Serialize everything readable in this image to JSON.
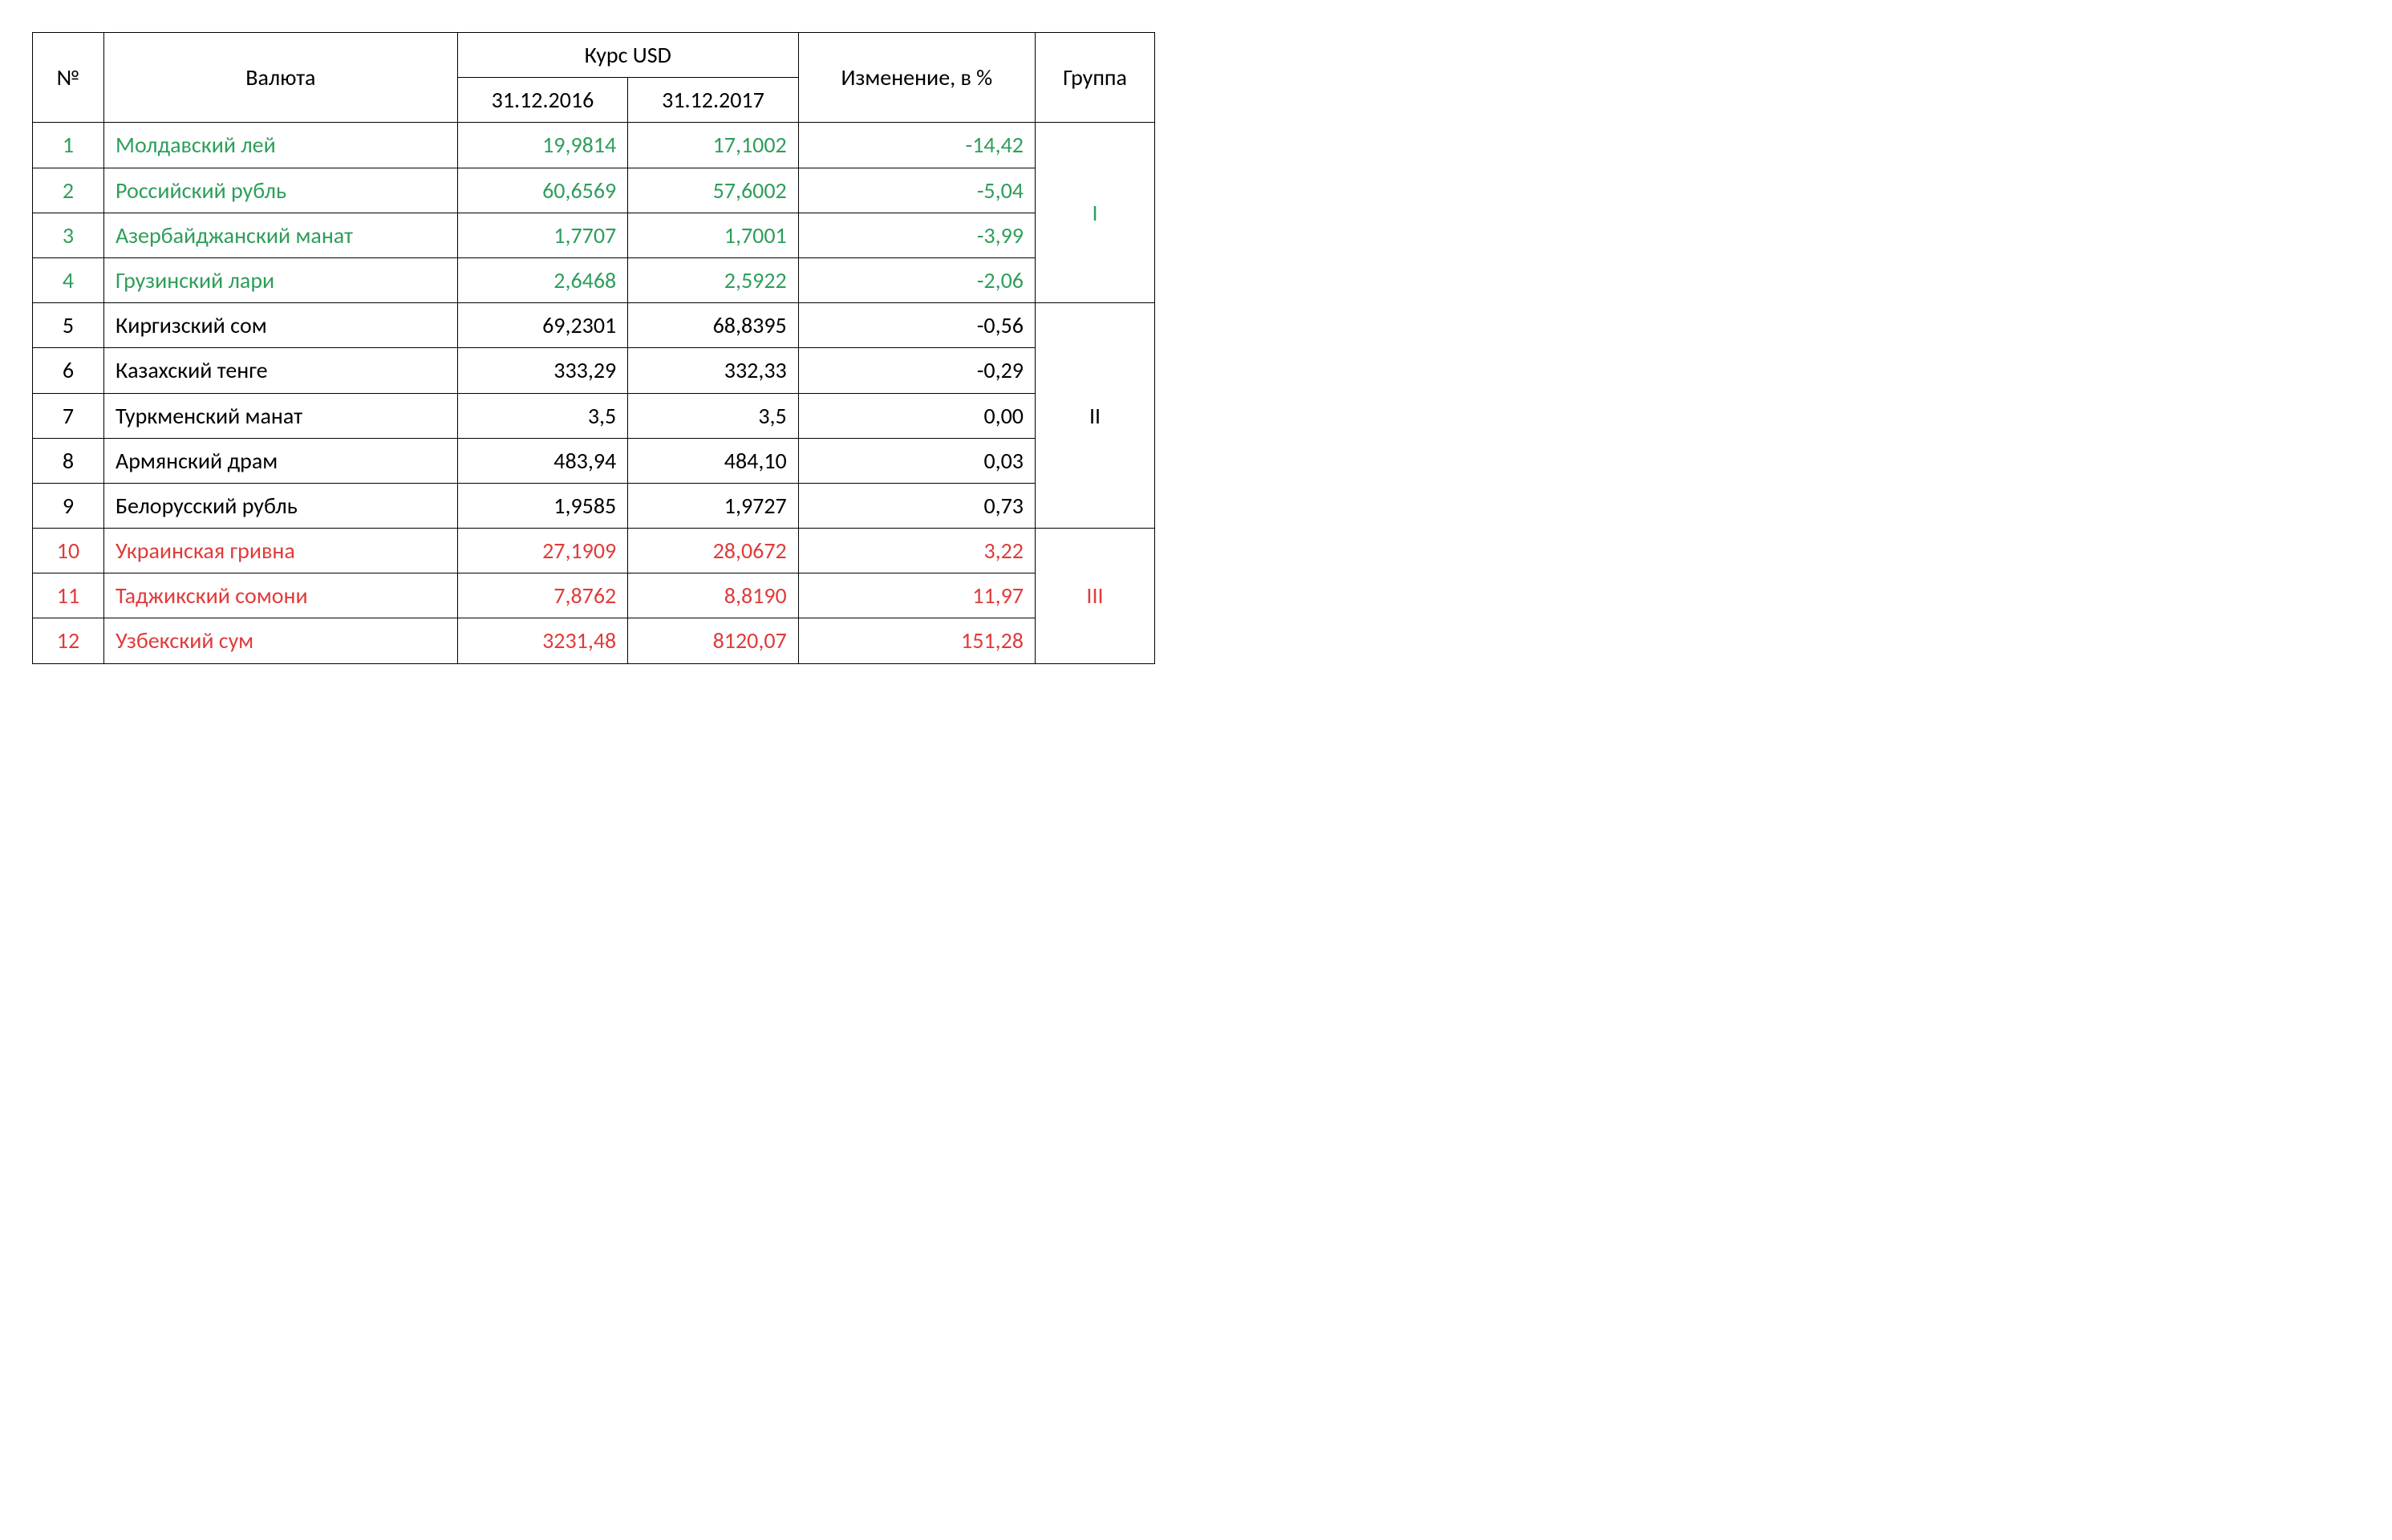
{
  "table": {
    "type": "table",
    "colors": {
      "green": "#2e9e5b",
      "black": "#000000",
      "red": "#e03b3b",
      "border": "#000000",
      "background": "#ffffff"
    },
    "font_size_pt": 20,
    "headers": {
      "num": "№",
      "currency": "Валюта",
      "rate_header": "Курс USD",
      "rate_2016": "31.12.2016",
      "rate_2017": "31.12.2017",
      "change": "Изменение, в %",
      "group": "Группа"
    },
    "groups": [
      {
        "label": "I",
        "color": "green",
        "rows": [
          {
            "num": "1",
            "name": "Молдавский лей",
            "r2016": "19,9814",
            "r2017": "17,1002",
            "change": "-14,42"
          },
          {
            "num": "2",
            "name": "Российский рубль",
            "r2016": "60,6569",
            "r2017": "57,6002",
            "change": "-5,04"
          },
          {
            "num": "3",
            "name": "Азербайджанский манат",
            "r2016": "1,7707",
            "r2017": "1,7001",
            "change": "-3,99"
          },
          {
            "num": "4",
            "name": "Грузинский лари",
            "r2016": "2,6468",
            "r2017": "2,5922",
            "change": "-2,06"
          }
        ]
      },
      {
        "label": "II",
        "color": "black",
        "rows": [
          {
            "num": "5",
            "name": "Киргизский сом",
            "r2016": "69,2301",
            "r2017": "68,8395",
            "change": "-0,56"
          },
          {
            "num": "6",
            "name": "Казахский тенге",
            "r2016": "333,29",
            "r2017": "332,33",
            "change": "-0,29"
          },
          {
            "num": "7",
            "name": "Туркменский манат",
            "r2016": "3,5",
            "r2017": "3,5",
            "change": "0,00"
          },
          {
            "num": "8",
            "name": "Армянский драм",
            "r2016": "483,94",
            "r2017": "484,10",
            "change": "0,03"
          },
          {
            "num": "9",
            "name": "Белорусский рубль",
            "r2016": "1,9585",
            "r2017": "1,9727",
            "change": "0,73"
          }
        ]
      },
      {
        "label": "III",
        "color": "red",
        "rows": [
          {
            "num": "10",
            "name": "Украинская гривна",
            "r2016": "27,1909",
            "r2017": "28,0672",
            "change": "3,22"
          },
          {
            "num": "11",
            "name": "Таджикский сомони",
            "r2016": "7,8762",
            "r2017": "8,8190",
            "change": "11,97"
          },
          {
            "num": "12",
            "name": "Узбекский сум",
            "r2016": "3231,48",
            "r2017": "8120,07",
            "change": "151,28"
          }
        ]
      }
    ]
  }
}
